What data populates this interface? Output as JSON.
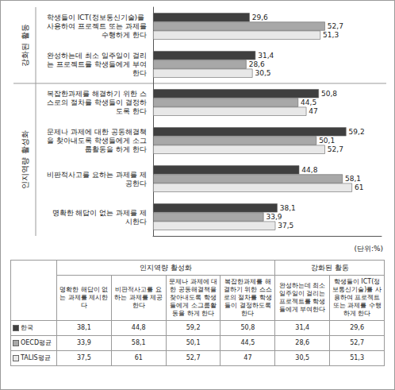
{
  "chart_data": {
    "type": "bar",
    "orientation": "horizontal",
    "data_labels": true,
    "grid": false,
    "tick_labels": false,
    "annotation": "(단위:%)",
    "xlim": [
      0,
      70
    ],
    "categories": [
      "학생들이 ICT(정보통신기술)를 사용하여 프로젝트 또는 과제를 수행하게 한다",
      "완성하는데 최소 일주일이 걸리는 프로젝트를 학생들에게 부여한다",
      "복잡한과제를 해결하기 위한 스스로의 절차를 학생들이 결정하도록 한다",
      "문제나 과제에 대한 공동해결책을 찾아내도록 학생들에게 소그룹활동을 하게 한다",
      "비판적사고를 요하는 과제를 제공한다",
      "명확한 해답이 없는 과제를 제시한다"
    ],
    "category_groups": [
      "강화된 활동",
      "강화된 활동",
      "인지역량 활성화",
      "인지역량 활성화",
      "인지역량 활성화",
      "인지역량 활성화"
    ],
    "series": [
      {
        "name": "한국",
        "color": "#3f3f3f",
        "values": [
          29.6,
          31.4,
          50.8,
          59.2,
          44.8,
          38.1
        ],
        "value_labels": [
          "29,6",
          "31,4",
          "50,8",
          "59,2",
          "44,8",
          "38,1"
        ]
      },
      {
        "name": "OECD평균",
        "color": "#a8a8a8",
        "values": [
          52.7,
          28.6,
          44.5,
          50.1,
          58.1,
          33.9
        ],
        "value_labels": [
          "52,7",
          "28,6",
          "44,5",
          "50,1",
          "58,1",
          "33,9"
        ]
      },
      {
        "name": "TALIS평균",
        "color": "#e8e8e8",
        "values": [
          51.3,
          30.5,
          47,
          52.7,
          61,
          37.5
        ],
        "value_labels": [
          "51,3",
          "30,5",
          "47",
          "52,7",
          "61",
          "37,5"
        ]
      }
    ]
  },
  "table": {
    "columns": [
      {
        "group": "인지역량 활성화",
        "label": "명확한 해답이 없는 과제를 제시한다"
      },
      {
        "group": "인지역량 활성화",
        "label": "비판적사고를 요하는 과제를 제공한다"
      },
      {
        "group": "인지역량 활성화",
        "label": "문제나 과제에 대한 공동해결책을 찾아내도록 학생들에게 소그룹활동을 하게 한다"
      },
      {
        "group": "인지역량 활성화",
        "label": "복잡한과제를 해결하기 위한 스스로의 절차를 학생들이 결정하도록 한다"
      },
      {
        "group": "강화된 활동",
        "label": "완성하는데 최소 일주일이 걸리는 프로젝트를 학생들에게 부여한다"
      },
      {
        "group": "강화된 활동",
        "label": "학생들이 ICT(정보통신기술)를 사용하여 프로젝트 또는 과제를 수행하게 한다"
      }
    ],
    "rows": [
      {
        "name": "한국",
        "cells": [
          "38,1",
          "44,8",
          "59,2",
          "50,8",
          "31,4",
          "29,6"
        ]
      },
      {
        "name": "OECD평균",
        "cells": [
          "33,9",
          "58,1",
          "50,1",
          "44,5",
          "28,6",
          "52,7"
        ]
      },
      {
        "name": "TALIS평균",
        "cells": [
          "37,5",
          "61",
          "52,7",
          "47",
          "30,5",
          "51,3"
        ]
      }
    ]
  }
}
